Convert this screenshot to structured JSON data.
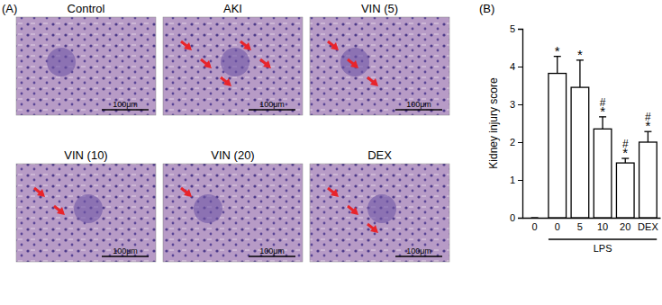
{
  "figure": {
    "panel_labels": [
      "(A)",
      "(B)"
    ],
    "images": [
      {
        "title": "Control",
        "scale_bar": "100μm"
      },
      {
        "title": "AKI",
        "scale_bar": "100μm"
      },
      {
        "title": "VIN (5)",
        "scale_bar": "100μm"
      },
      {
        "title": "VIN (10)",
        "scale_bar": "100μm"
      },
      {
        "title": "VIN (20)",
        "scale_bar": "100μm"
      },
      {
        "title": "DEX",
        "scale_bar": "100μm"
      }
    ]
  },
  "chart_data": {
    "type": "bar",
    "y_label": "Kidney injury score",
    "categories": [
      "0",
      "0",
      "5",
      "10",
      "20",
      "DEX"
    ],
    "values": [
      0,
      3.82,
      3.45,
      2.35,
      1.45,
      2.0
    ],
    "errors": [
      0,
      0.45,
      0.72,
      0.32,
      0.12,
      0.28
    ],
    "annotations_lower": [
      null,
      "*",
      "*",
      "*",
      "*",
      "*"
    ],
    "annotations_upper": [
      null,
      null,
      null,
      "#",
      "#",
      "#"
    ],
    "groups": [
      {
        "label": "LPS",
        "from_category": 1,
        "to_category": 5
      }
    ],
    "color": "#ffffff",
    "ylim": [
      0,
      5
    ],
    "yticks": [
      0,
      1,
      2,
      3,
      4,
      5
    ],
    "grid": false
  }
}
